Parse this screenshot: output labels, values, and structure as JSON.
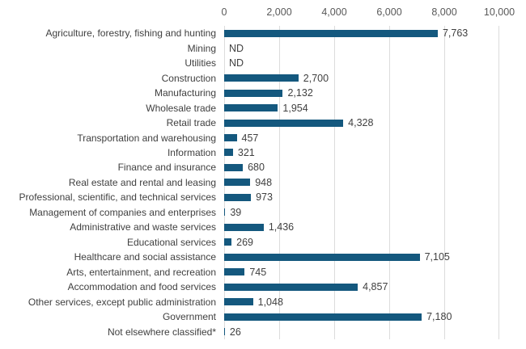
{
  "chart_data": {
    "type": "bar",
    "orientation": "horizontal",
    "title": "",
    "xlabel": "",
    "ylabel": "",
    "xlim": [
      0,
      10000
    ],
    "x_ticks": [
      {
        "label": "0",
        "value": 0
      },
      {
        "label": "2,000",
        "value": 2000
      },
      {
        "label": "4,000",
        "value": 4000
      },
      {
        "label": "6,000",
        "value": 6000
      },
      {
        "label": "8,000",
        "value": 8000
      },
      {
        "label": "10,000",
        "value": 10000
      }
    ],
    "grid": "vertical",
    "legend": "none",
    "bar_color": "#14587e",
    "gridline_color": "#dcdcdc",
    "category_label_color": "#404040",
    "value_label_color": "#404040",
    "axis_tick_color": "#595959",
    "rows": [
      {
        "category": "Agriculture, forestry, fishing and hunting",
        "value": 7763,
        "label": "7,763"
      },
      {
        "category": "Mining",
        "value": null,
        "label": "ND"
      },
      {
        "category": "Utilities",
        "value": null,
        "label": "ND"
      },
      {
        "category": "Construction",
        "value": 2700,
        "label": "2,700"
      },
      {
        "category": "Manufacturing",
        "value": 2132,
        "label": "2,132"
      },
      {
        "category": "Wholesale trade",
        "value": 1954,
        "label": "1,954"
      },
      {
        "category": "Retail trade",
        "value": 4328,
        "label": "4,328"
      },
      {
        "category": "Transportation and warehousing",
        "value": 457,
        "label": "457"
      },
      {
        "category": "Information",
        "value": 321,
        "label": "321"
      },
      {
        "category": "Finance and insurance",
        "value": 680,
        "label": "680"
      },
      {
        "category": "Real estate and rental and leasing",
        "value": 948,
        "label": "948"
      },
      {
        "category": "Professional, scientific, and technical services",
        "value": 973,
        "label": "973"
      },
      {
        "category": "Management of companies and enterprises",
        "value": 39,
        "label": "39"
      },
      {
        "category": "Administrative and waste services",
        "value": 1436,
        "label": "1,436"
      },
      {
        "category": "Educational services",
        "value": 269,
        "label": "269"
      },
      {
        "category": "Healthcare and social assistance",
        "value": 7105,
        "label": "7,105"
      },
      {
        "category": "Arts, entertainment, and recreation",
        "value": 745,
        "label": "745"
      },
      {
        "category": "Accommodation and food services",
        "value": 4857,
        "label": "4,857"
      },
      {
        "category": "Other services, except public administration",
        "value": 1048,
        "label": "1,048"
      },
      {
        "category": "Government",
        "value": 7180,
        "label": "7,180"
      },
      {
        "category": "Not elsewhere classified*",
        "value": 26,
        "label": "26"
      }
    ]
  }
}
